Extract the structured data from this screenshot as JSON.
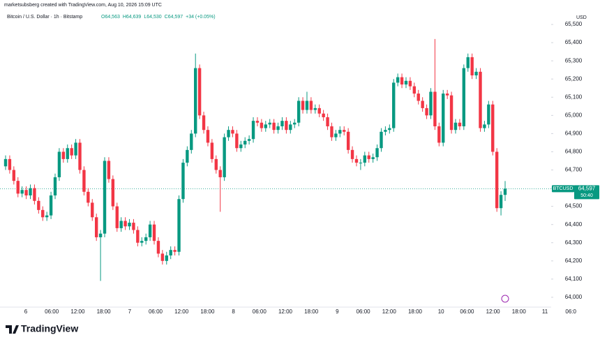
{
  "chart_data": {
    "type": "candlestick",
    "attribution": "marketsubsberg created with TradingView.com, Aug 10, 2026 15:09 UTC",
    "title": "Bitcoin / U.S. Dollar · 1h · Bitstamp",
    "ohlc_text": [
      "O64,563",
      "H64,639",
      "L64,530",
      "C64,597",
      "+34 (+0.05%)"
    ],
    "currency": "USD",
    "symbol": "BTCUSD",
    "last_price_label": "64,597",
    "countdown": "50:40",
    "last_price": 64597,
    "brand": "TradingView",
    "up_color": "#089981",
    "down_color": "#f23645",
    "grid": false,
    "xtick_labels": [
      "6",
      "06:00",
      "12:00",
      "18:00",
      "7",
      "06:00",
      "12:00",
      "18:00",
      "8",
      "06:00",
      "12:00",
      "18:00",
      "9",
      "06:00",
      "12:00",
      "18:00",
      "10",
      "06:00",
      "12:00",
      "18:00",
      "11",
      "06:0"
    ],
    "ylim": [
      63946,
      65527
    ],
    "yticks": [
      {
        "value": 64000,
        "label": "64,000"
      },
      {
        "value": 64100,
        "label": "64,100"
      },
      {
        "value": 64200,
        "label": "64,200"
      },
      {
        "value": 64300,
        "label": "64,300"
      },
      {
        "value": 64400,
        "label": "64,400"
      },
      {
        "value": 64500,
        "label": "64,500"
      },
      {
        "value": 64600,
        "label": "64,600"
      },
      {
        "value": 64700,
        "label": "64,700"
      },
      {
        "value": 64800,
        "label": "64,800"
      },
      {
        "value": 64900,
        "label": "64,900"
      },
      {
        "value": 65000,
        "label": "65,000"
      },
      {
        "value": 65100,
        "label": "65,100"
      },
      {
        "value": 65200,
        "label": "65,200"
      },
      {
        "value": 65300,
        "label": "65,300"
      },
      {
        "value": 65400,
        "label": "65,400"
      },
      {
        "value": 65500,
        "label": "65,500"
      }
    ],
    "open": [
      64720,
      64760,
      64700,
      64640,
      64570,
      64590,
      64560,
      64600,
      64530,
      64480,
      64440,
      64450,
      64560,
      64660,
      64800,
      64760,
      64820,
      64780,
      64850,
      64700,
      64580,
      64520,
      64440,
      64330,
      64350,
      64750,
      64650,
      64500,
      64380,
      64420,
      64390,
      64410,
      64370,
      64300,
      64310,
      64330,
      64400,
      64310,
      64240,
      64200,
      64230,
      64260,
      64250,
      64540,
      64740,
      64810,
      64900,
      65260,
      65000,
      64920,
      64850,
      64760,
      64700,
      64660,
      64880,
      64920,
      64900,
      64820,
      64840,
      64860,
      64870,
      64970,
      64960,
      64930,
      64950,
      64960,
      64920,
      64940,
      64970,
      64920,
      64950,
      64960,
      65080,
      65030,
      65080,
      65030,
      65040,
      65010,
      64990,
      64940,
      64880,
      64900,
      64920,
      64910,
      64810,
      64760,
      64740,
      64740,
      64780,
      64760,
      64770,
      64820,
      64910,
      64920,
      64930,
      65180,
      65210,
      65170,
      65190,
      65160,
      65120,
      65080,
      65040,
      65000,
      65130,
      64940,
      64850,
      65120,
      65110,
      64920,
      64960,
      64940,
      65260,
      65320,
      65220,
      65240,
      64930,
      64950,
      65060,
      64800,
      64490,
      64563
    ],
    "high": [
      64780,
      64780,
      64720,
      64660,
      64610,
      64610,
      64620,
      64620,
      64550,
      64500,
      64470,
      64580,
      64680,
      64820,
      64820,
      64840,
      64840,
      64870,
      64870,
      64720,
      64600,
      64540,
      64460,
      64370,
      64770,
      64770,
      64670,
      64520,
      64440,
      64440,
      64430,
      64430,
      64390,
      64330,
      64350,
      64420,
      64420,
      64330,
      64260,
      64250,
      64280,
      64280,
      64560,
      64760,
      64830,
      64920,
      65340,
      65280,
      65020,
      64940,
      64870,
      64780,
      64720,
      64900,
      64940,
      64940,
      64920,
      64860,
      64880,
      64890,
      64990,
      64990,
      64980,
      64970,
      64980,
      64980,
      64960,
      64990,
      64990,
      64970,
      64980,
      65100,
      65100,
      65130,
      65100,
      65060,
      65060,
      65030,
      65010,
      64960,
      64920,
      64940,
      64940,
      64930,
      64830,
      64780,
      64760,
      64800,
      64800,
      64790,
      64840,
      64930,
      64940,
      64950,
      65200,
      65230,
      65230,
      65210,
      65210,
      65180,
      65140,
      65100,
      65060,
      65150,
      65420,
      64960,
      65140,
      65140,
      65130,
      64980,
      64980,
      65280,
      65340,
      65340,
      65260,
      65260,
      64970,
      65080,
      65080,
      64820,
      64583,
      64639
    ],
    "low": [
      64700,
      64680,
      64620,
      64550,
      64550,
      64540,
      64540,
      64510,
      64460,
      64420,
      64420,
      64430,
      64540,
      64640,
      64740,
      64740,
      64760,
      64760,
      64680,
      64560,
      64500,
      64420,
      64310,
      64090,
      64330,
      64630,
      64480,
      64360,
      64360,
      64370,
      64370,
      64350,
      64280,
      64280,
      64290,
      64310,
      64290,
      64220,
      64180,
      64180,
      64210,
      64230,
      64230,
      64520,
      64720,
      64790,
      64880,
      64980,
      64900,
      64830,
      64740,
      64680,
      64470,
      64640,
      64860,
      64880,
      64800,
      64800,
      64820,
      64840,
      64850,
      64940,
      64910,
      64910,
      64930,
      64900,
      64900,
      64920,
      64900,
      64900,
      64930,
      64940,
      65010,
      65010,
      65010,
      65010,
      64990,
      64970,
      64920,
      64860,
      64860,
      64880,
      64890,
      64790,
      64740,
      64720,
      64700,
      64720,
      64740,
      64740,
      64750,
      64800,
      64890,
      64900,
      64910,
      65160,
      65150,
      65150,
      65140,
      65100,
      65060,
      65020,
      64980,
      64980,
      64920,
      64830,
      64830,
      65090,
      64900,
      64900,
      64920,
      64920,
      65240,
      65200,
      65200,
      64910,
      64910,
      64930,
      64780,
      64470,
      64450,
      64530
    ],
    "close": [
      64760,
      64700,
      64640,
      64570,
      64590,
      64560,
      64600,
      64530,
      64480,
      64440,
      64450,
      64560,
      64660,
      64800,
      64760,
      64820,
      64780,
      64850,
      64700,
      64580,
      64520,
      64440,
      64330,
      64350,
      64750,
      64650,
      64500,
      64380,
      64420,
      64390,
      64410,
      64370,
      64300,
      64310,
      64330,
      64400,
      64310,
      64240,
      64200,
      64230,
      64260,
      64250,
      64540,
      64740,
      64810,
      64900,
      65260,
      65000,
      64920,
      64850,
      64760,
      64700,
      64660,
      64880,
      64920,
      64900,
      64820,
      64840,
      64860,
      64870,
      64970,
      64960,
      64930,
      64950,
      64960,
      64920,
      64940,
      64970,
      64920,
      64950,
      64960,
      65080,
      65030,
      65080,
      65030,
      65040,
      65010,
      64990,
      64940,
      64880,
      64900,
      64920,
      64910,
      64810,
      64760,
      64740,
      64740,
      64780,
      64760,
      64770,
      64820,
      64910,
      64920,
      64930,
      65180,
      65210,
      65170,
      65190,
      65160,
      65120,
      65080,
      65040,
      65000,
      65130,
      64940,
      64850,
      65120,
      65110,
      64920,
      64960,
      64940,
      65260,
      65320,
      65220,
      65240,
      64930,
      64950,
      65060,
      64800,
      64490,
      64563,
      64597
    ]
  }
}
